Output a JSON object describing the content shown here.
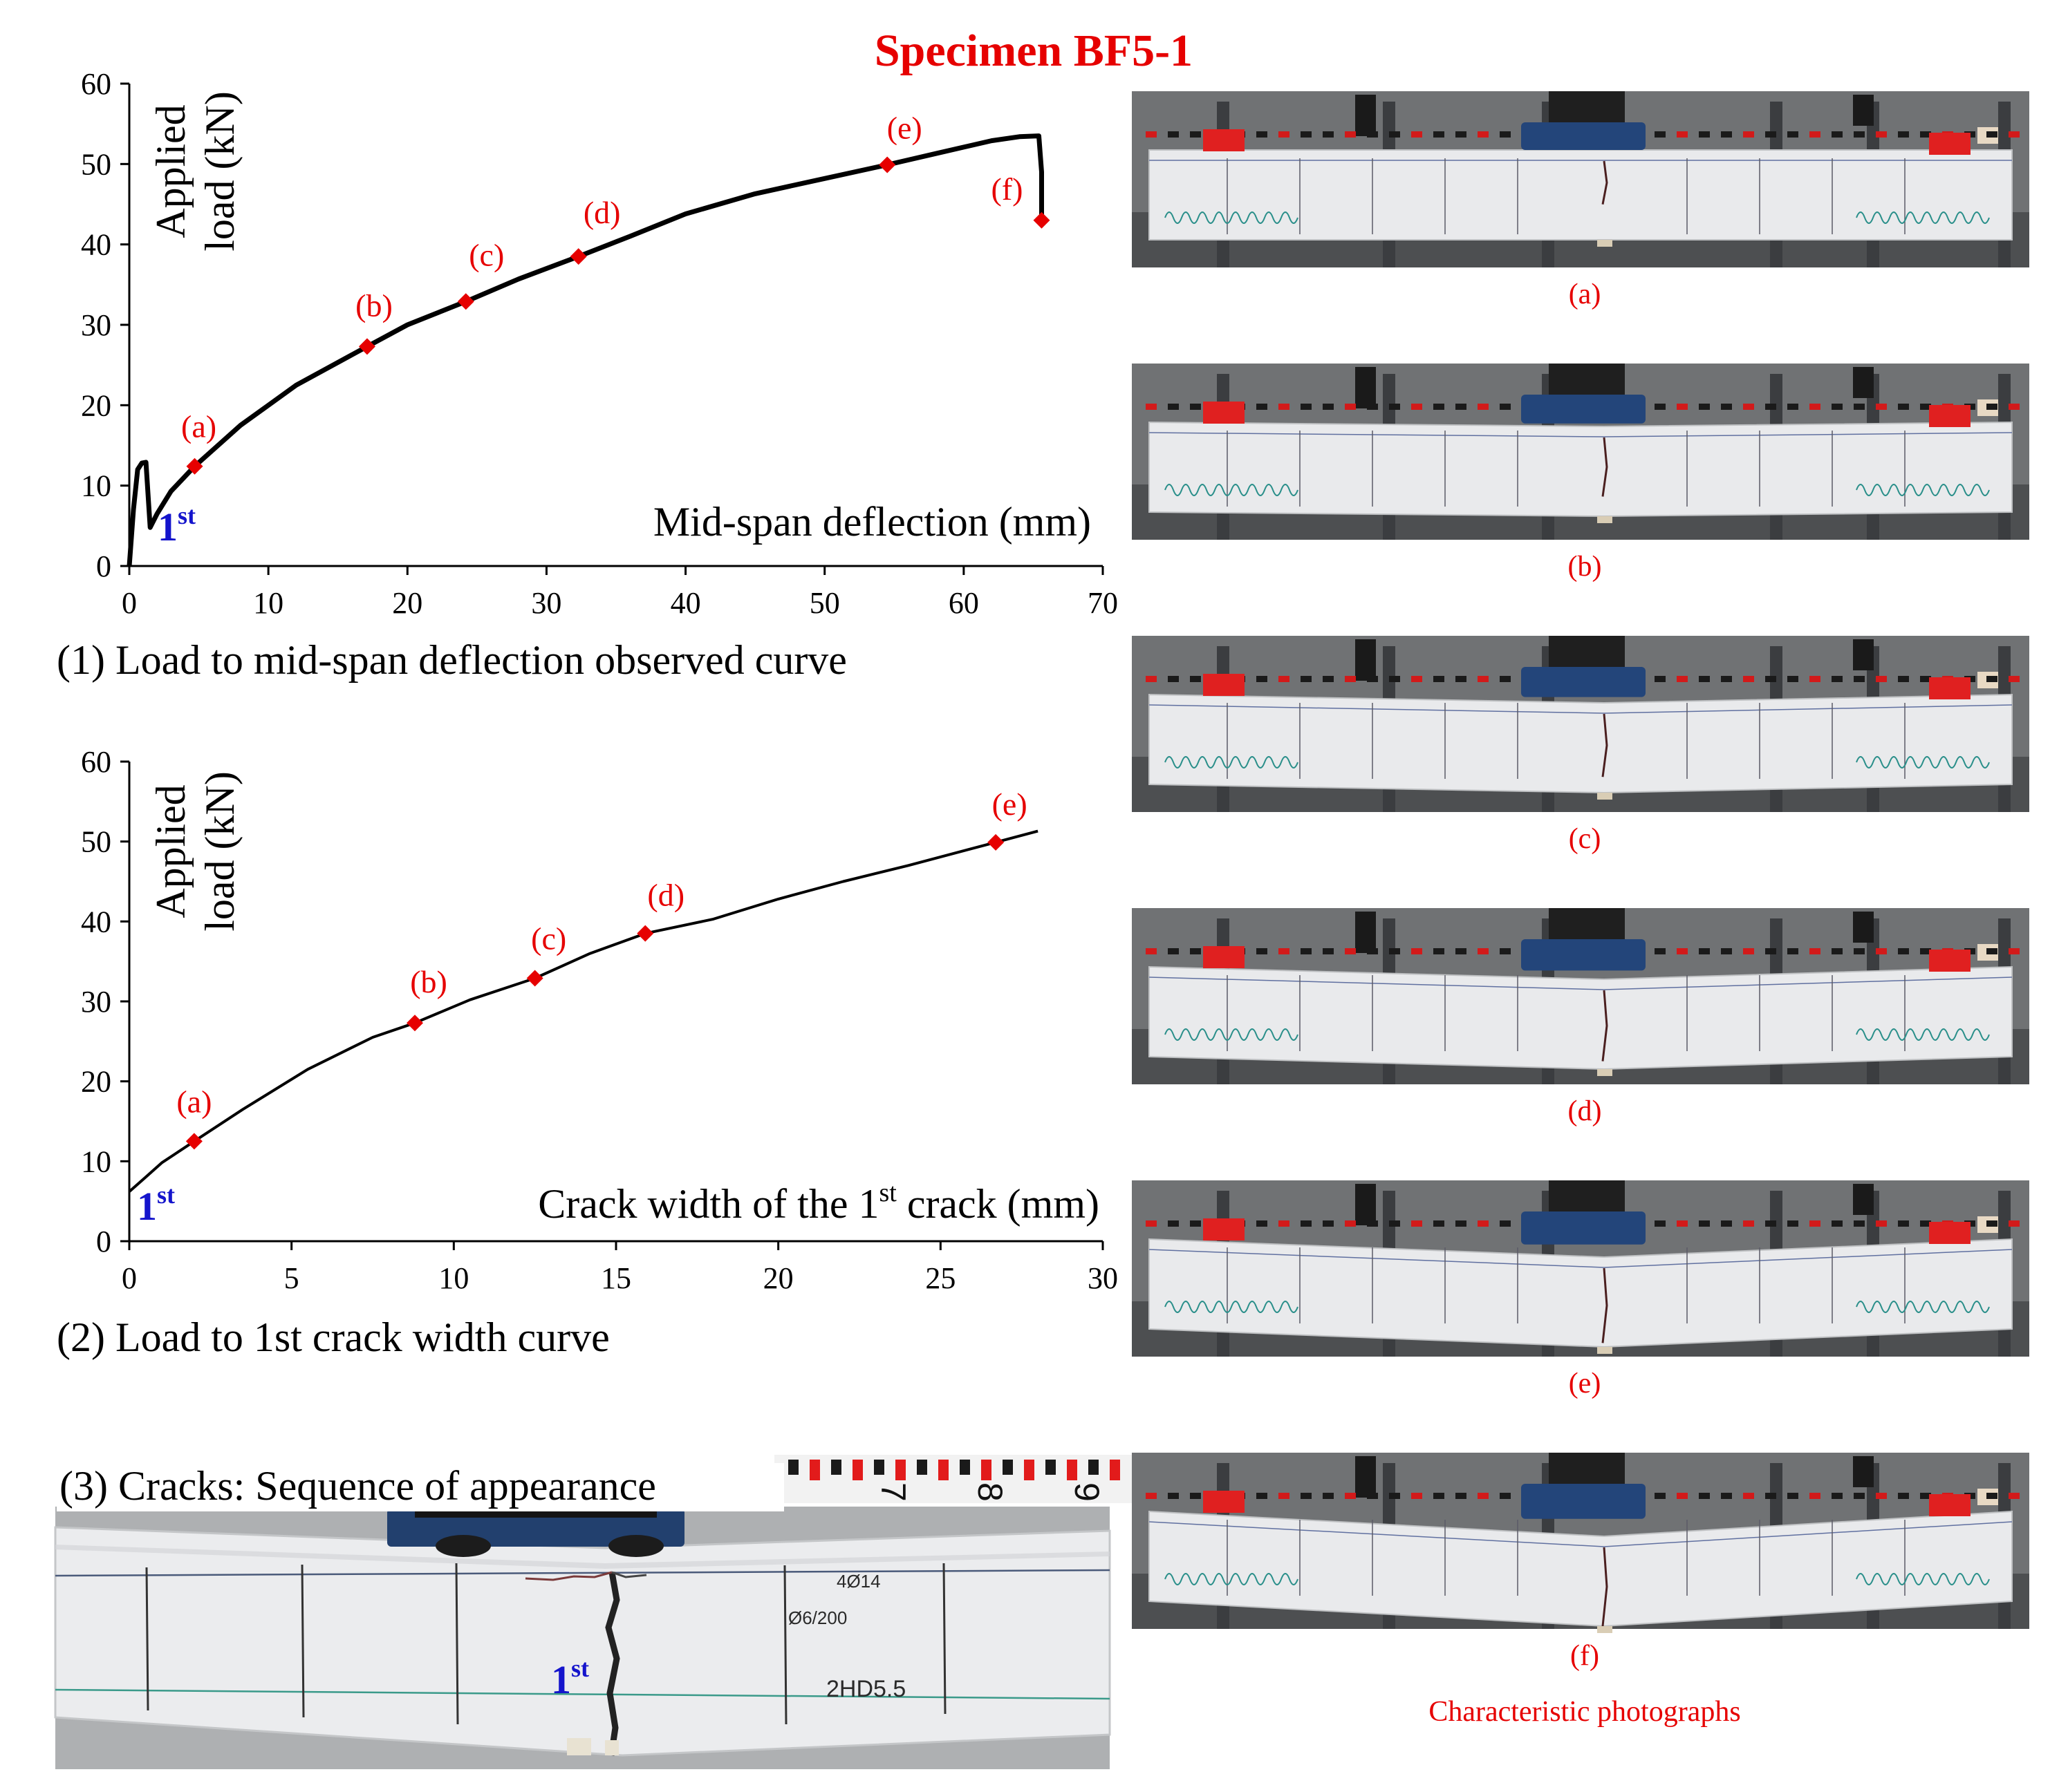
{
  "title": "Specimen BF5-1",
  "colors": {
    "accent": "#e60000",
    "first_crack_label": "#1414cc",
    "curve": "#000000"
  },
  "chart_data": [
    {
      "id": "load_deflection",
      "type": "line",
      "caption": "(1) Load to mid-span deflection observed curve",
      "xlabel": "Mid-span deflection (mm)",
      "ylabel": "Applied load (kN)",
      "ylabel_lines": [
        "Applied",
        "load (kN)"
      ],
      "xlim": [
        0,
        70
      ],
      "ylim": [
        0,
        60
      ],
      "xticks": [
        0,
        10,
        20,
        30,
        40,
        50,
        60,
        70
      ],
      "yticks": [
        0,
        10,
        20,
        30,
        40,
        50,
        60
      ],
      "xticklabels": [
        "0",
        "10",
        "20",
        "30",
        "40",
        "50",
        "60",
        "70"
      ],
      "yticklabels": [
        "0",
        "10",
        "20",
        "30",
        "40",
        "50",
        "60"
      ],
      "first_crack_label": "1st",
      "series": [
        {
          "x": [
            0,
            0.3,
            0.6,
            0.9,
            1.2,
            1.5,
            2.0,
            3.0,
            4.7,
            8,
            12,
            17.1,
            20,
            24.2,
            28,
            32.3,
            36,
            40,
            45,
            50,
            54.5,
            58,
            62,
            64,
            65.4,
            65.6,
            65.6
          ],
          "y": [
            0,
            7,
            12,
            12.8,
            12.9,
            4.8,
            6.5,
            9.3,
            12.4,
            17.5,
            22.5,
            27.3,
            30,
            32.9,
            35.7,
            38.5,
            41,
            43.8,
            46.3,
            48.2,
            49.9,
            51.3,
            52.9,
            53.4,
            53.5,
            49,
            43
          ]
        }
      ],
      "markers": [
        {
          "label": "(a)",
          "x": 4.7,
          "y": 12.4
        },
        {
          "label": "(b)",
          "x": 17.1,
          "y": 27.3
        },
        {
          "label": "(c)",
          "x": 24.2,
          "y": 32.9
        },
        {
          "label": "(d)",
          "x": 32.3,
          "y": 38.5
        },
        {
          "label": "(e)",
          "x": 54.5,
          "y": 49.9
        },
        {
          "label": "(f)",
          "x": 65.6,
          "y": 43.0
        }
      ]
    },
    {
      "id": "load_crack_width",
      "type": "line",
      "caption": "(2) Load to 1st crack width curve",
      "xlabel": "Crack width of the 1st crack (mm)",
      "ylabel": "Applied load (kN)",
      "ylabel_lines": [
        "Applied",
        "load (kN)"
      ],
      "xlim": [
        0,
        30
      ],
      "ylim": [
        0,
        60
      ],
      "xticks": [
        0,
        5,
        10,
        15,
        20,
        25,
        30
      ],
      "yticks": [
        0,
        10,
        20,
        30,
        40,
        50,
        60
      ],
      "xticklabels": [
        "0",
        "5",
        "10",
        "15",
        "20",
        "25",
        "30"
      ],
      "yticklabels": [
        "0",
        "10",
        "20",
        "30",
        "40",
        "50",
        "60"
      ],
      "first_crack_label": "1st",
      "series": [
        {
          "x": [
            0,
            0.5,
            1.0,
            2.0,
            3.5,
            5.5,
            7.5,
            8.8,
            10.5,
            12.5,
            14.2,
            15.9,
            18,
            20,
            22,
            24,
            26.7,
            28
          ],
          "y": [
            6.2,
            8,
            9.8,
            12.5,
            16.5,
            21.5,
            25.5,
            27.3,
            30.2,
            32.9,
            36,
            38.5,
            40.3,
            42.8,
            45,
            47,
            49.9,
            51.3
          ]
        }
      ],
      "markers": [
        {
          "label": "(a)",
          "x": 2.0,
          "y": 12.5
        },
        {
          "label": "(b)",
          "x": 8.8,
          "y": 27.3
        },
        {
          "label": "(c)",
          "x": 12.5,
          "y": 32.9
        },
        {
          "label": "(d)",
          "x": 15.9,
          "y": 38.5
        },
        {
          "label": "(e)",
          "x": 26.7,
          "y": 49.9
        }
      ]
    }
  ],
  "crack_photo": {
    "caption": "(3) Cracks: Sequence of appearance",
    "first_label": "1st",
    "beam_labels": [
      "4Ø14",
      "Ø6/200",
      "2HD5.5"
    ],
    "ruler_digits": [
      "7",
      "8",
      "9"
    ]
  },
  "photos": {
    "captions": [
      "(a)",
      "(b)",
      "(c)",
      "(d)",
      "(e)",
      "(f)"
    ],
    "drops": [
      0,
      0.15,
      0.3,
      0.45,
      0.65,
      0.9
    ],
    "crack_extent": [
      0.55,
      0.75,
      0.8,
      0.9,
      0.95,
      1.0
    ],
    "label": "Characteristic photographs"
  }
}
